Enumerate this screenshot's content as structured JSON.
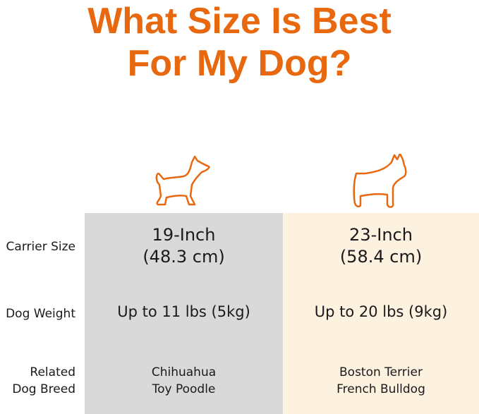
{
  "title": {
    "line1": "What Size Is Best",
    "line2": "For My Dog?"
  },
  "colors": {
    "accent": "#e8680f",
    "small_column": "#d9d9d9",
    "large_column": "#fdf1e0"
  },
  "row_labels": {
    "carrier_size": "Carrier Size",
    "dog_weight": "Dog Weight",
    "breed_line1": "Related",
    "breed_line2": "Dog Breed"
  },
  "columns": [
    {
      "icon": "chihuahua-icon",
      "size_line1": "19-Inch",
      "size_line2": "(48.3 cm)",
      "weight": "Up to 11 lbs (5kg)",
      "breeds": [
        "Chihuahua",
        "Toy Poodle"
      ]
    },
    {
      "icon": "french-bulldog-icon",
      "size_line1": "23-Inch",
      "size_line2": "(58.4 cm)",
      "weight": "Up to 20 lbs (9kg)",
      "breeds": [
        "Boston Terrier",
        "French Bulldog"
      ]
    }
  ]
}
